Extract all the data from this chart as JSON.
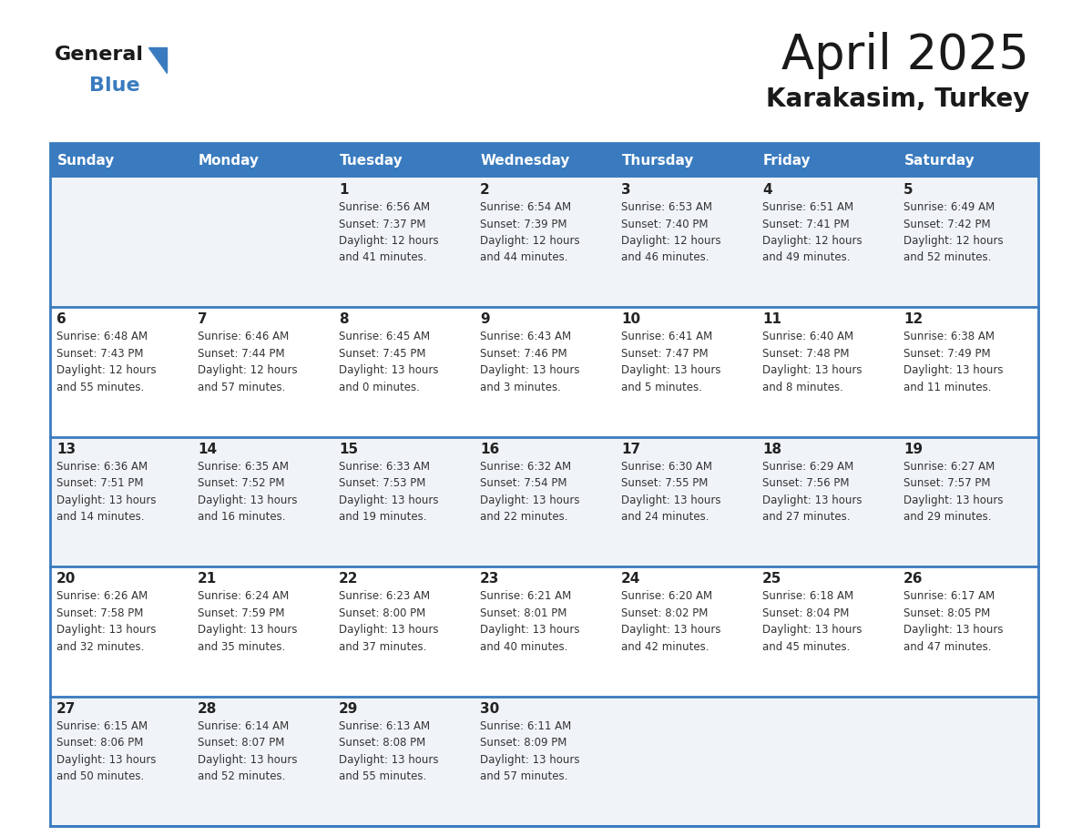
{
  "title": "April 2025",
  "subtitle": "Karakasim, Turkey",
  "header_bg_color": "#3a7bbf",
  "header_text_color": "#ffffff",
  "cell_bg_even": "#f0f4f8",
  "cell_bg_odd": "#ffffff",
  "day_text_color": "#222222",
  "data_text_color": "#333333",
  "line_color": "#3a7bbf",
  "logo_general_color": "#1a1a1a",
  "logo_blue_color": "#3a7bbf",
  "logo_triangle_color": "#3a7bbf",
  "days_of_week": [
    "Sunday",
    "Monday",
    "Tuesday",
    "Wednesday",
    "Thursday",
    "Friday",
    "Saturday"
  ],
  "weeks": [
    [
      {
        "day": "",
        "info": ""
      },
      {
        "day": "",
        "info": ""
      },
      {
        "day": "1",
        "info": "Sunrise: 6:56 AM\nSunset: 7:37 PM\nDaylight: 12 hours\nand 41 minutes."
      },
      {
        "day": "2",
        "info": "Sunrise: 6:54 AM\nSunset: 7:39 PM\nDaylight: 12 hours\nand 44 minutes."
      },
      {
        "day": "3",
        "info": "Sunrise: 6:53 AM\nSunset: 7:40 PM\nDaylight: 12 hours\nand 46 minutes."
      },
      {
        "day": "4",
        "info": "Sunrise: 6:51 AM\nSunset: 7:41 PM\nDaylight: 12 hours\nand 49 minutes."
      },
      {
        "day": "5",
        "info": "Sunrise: 6:49 AM\nSunset: 7:42 PM\nDaylight: 12 hours\nand 52 minutes."
      }
    ],
    [
      {
        "day": "6",
        "info": "Sunrise: 6:48 AM\nSunset: 7:43 PM\nDaylight: 12 hours\nand 55 minutes."
      },
      {
        "day": "7",
        "info": "Sunrise: 6:46 AM\nSunset: 7:44 PM\nDaylight: 12 hours\nand 57 minutes."
      },
      {
        "day": "8",
        "info": "Sunrise: 6:45 AM\nSunset: 7:45 PM\nDaylight: 13 hours\nand 0 minutes."
      },
      {
        "day": "9",
        "info": "Sunrise: 6:43 AM\nSunset: 7:46 PM\nDaylight: 13 hours\nand 3 minutes."
      },
      {
        "day": "10",
        "info": "Sunrise: 6:41 AM\nSunset: 7:47 PM\nDaylight: 13 hours\nand 5 minutes."
      },
      {
        "day": "11",
        "info": "Sunrise: 6:40 AM\nSunset: 7:48 PM\nDaylight: 13 hours\nand 8 minutes."
      },
      {
        "day": "12",
        "info": "Sunrise: 6:38 AM\nSunset: 7:49 PM\nDaylight: 13 hours\nand 11 minutes."
      }
    ],
    [
      {
        "day": "13",
        "info": "Sunrise: 6:36 AM\nSunset: 7:51 PM\nDaylight: 13 hours\nand 14 minutes."
      },
      {
        "day": "14",
        "info": "Sunrise: 6:35 AM\nSunset: 7:52 PM\nDaylight: 13 hours\nand 16 minutes."
      },
      {
        "day": "15",
        "info": "Sunrise: 6:33 AM\nSunset: 7:53 PM\nDaylight: 13 hours\nand 19 minutes."
      },
      {
        "day": "16",
        "info": "Sunrise: 6:32 AM\nSunset: 7:54 PM\nDaylight: 13 hours\nand 22 minutes."
      },
      {
        "day": "17",
        "info": "Sunrise: 6:30 AM\nSunset: 7:55 PM\nDaylight: 13 hours\nand 24 minutes."
      },
      {
        "day": "18",
        "info": "Sunrise: 6:29 AM\nSunset: 7:56 PM\nDaylight: 13 hours\nand 27 minutes."
      },
      {
        "day": "19",
        "info": "Sunrise: 6:27 AM\nSunset: 7:57 PM\nDaylight: 13 hours\nand 29 minutes."
      }
    ],
    [
      {
        "day": "20",
        "info": "Sunrise: 6:26 AM\nSunset: 7:58 PM\nDaylight: 13 hours\nand 32 minutes."
      },
      {
        "day": "21",
        "info": "Sunrise: 6:24 AM\nSunset: 7:59 PM\nDaylight: 13 hours\nand 35 minutes."
      },
      {
        "day": "22",
        "info": "Sunrise: 6:23 AM\nSunset: 8:00 PM\nDaylight: 13 hours\nand 37 minutes."
      },
      {
        "day": "23",
        "info": "Sunrise: 6:21 AM\nSunset: 8:01 PM\nDaylight: 13 hours\nand 40 minutes."
      },
      {
        "day": "24",
        "info": "Sunrise: 6:20 AM\nSunset: 8:02 PM\nDaylight: 13 hours\nand 42 minutes."
      },
      {
        "day": "25",
        "info": "Sunrise: 6:18 AM\nSunset: 8:04 PM\nDaylight: 13 hours\nand 45 minutes."
      },
      {
        "day": "26",
        "info": "Sunrise: 6:17 AM\nSunset: 8:05 PM\nDaylight: 13 hours\nand 47 minutes."
      }
    ],
    [
      {
        "day": "27",
        "info": "Sunrise: 6:15 AM\nSunset: 8:06 PM\nDaylight: 13 hours\nand 50 minutes."
      },
      {
        "day": "28",
        "info": "Sunrise: 6:14 AM\nSunset: 8:07 PM\nDaylight: 13 hours\nand 52 minutes."
      },
      {
        "day": "29",
        "info": "Sunrise: 6:13 AM\nSunset: 8:08 PM\nDaylight: 13 hours\nand 55 minutes."
      },
      {
        "day": "30",
        "info": "Sunrise: 6:11 AM\nSunset: 8:09 PM\nDaylight: 13 hours\nand 57 minutes."
      },
      {
        "day": "",
        "info": ""
      },
      {
        "day": "",
        "info": ""
      },
      {
        "day": "",
        "info": ""
      }
    ]
  ]
}
